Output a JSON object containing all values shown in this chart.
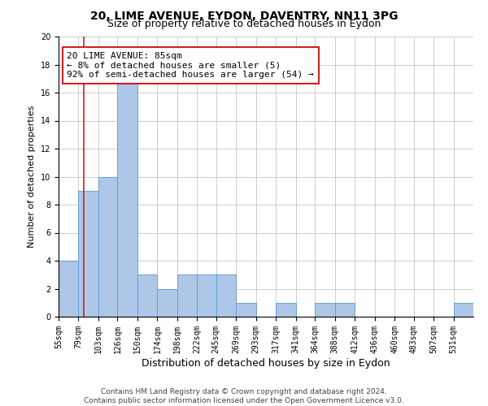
{
  "title1": "20, LIME AVENUE, EYDON, DAVENTRY, NN11 3PG",
  "title2": "Size of property relative to detached houses in Eydon",
  "xlabel": "Distribution of detached houses by size in Eydon",
  "ylabel": "Number of detached properties",
  "bar_heights": [
    4,
    9,
    10,
    17,
    3,
    2,
    3,
    3,
    3,
    1,
    0,
    1,
    0,
    1,
    1,
    0,
    0,
    0,
    0,
    0,
    1
  ],
  "bin_edges": [
    55,
    79,
    103,
    126,
    150,
    174,
    198,
    222,
    245,
    269,
    293,
    317,
    341,
    364,
    388,
    412,
    436,
    460,
    483,
    507,
    531,
    555
  ],
  "tick_labels": [
    "55sqm",
    "79sqm",
    "103sqm",
    "126sqm",
    "150sqm",
    "174sqm",
    "198sqm",
    "222sqm",
    "245sqm",
    "269sqm",
    "293sqm",
    "317sqm",
    "341sqm",
    "364sqm",
    "388sqm",
    "412sqm",
    "436sqm",
    "460sqm",
    "483sqm",
    "507sqm",
    "531sqm"
  ],
  "bar_facecolor": "#aec6e8",
  "bar_edgecolor": "#5b9bd5",
  "vline_x": 85,
  "vline_color": "#cc2222",
  "annotation_text": "20 LIME AVENUE: 85sqm\n← 8% of detached houses are smaller (5)\n92% of semi-detached houses are larger (54) →",
  "annotation_box_edgecolor": "#cc2222",
  "annotation_box_facecolor": "#ffffff",
  "ylim": [
    0,
    20
  ],
  "yticks": [
    0,
    2,
    4,
    6,
    8,
    10,
    12,
    14,
    16,
    18,
    20
  ],
  "grid_color": "#cccccc",
  "bg_color": "#ffffff",
  "footer": "Contains HM Land Registry data © Crown copyright and database right 2024.\nContains public sector information licensed under the Open Government Licence v3.0.",
  "title1_fontsize": 10,
  "title2_fontsize": 9,
  "xlabel_fontsize": 9,
  "ylabel_fontsize": 8,
  "tick_fontsize": 7,
  "annotation_fontsize": 8,
  "footer_fontsize": 6.5
}
